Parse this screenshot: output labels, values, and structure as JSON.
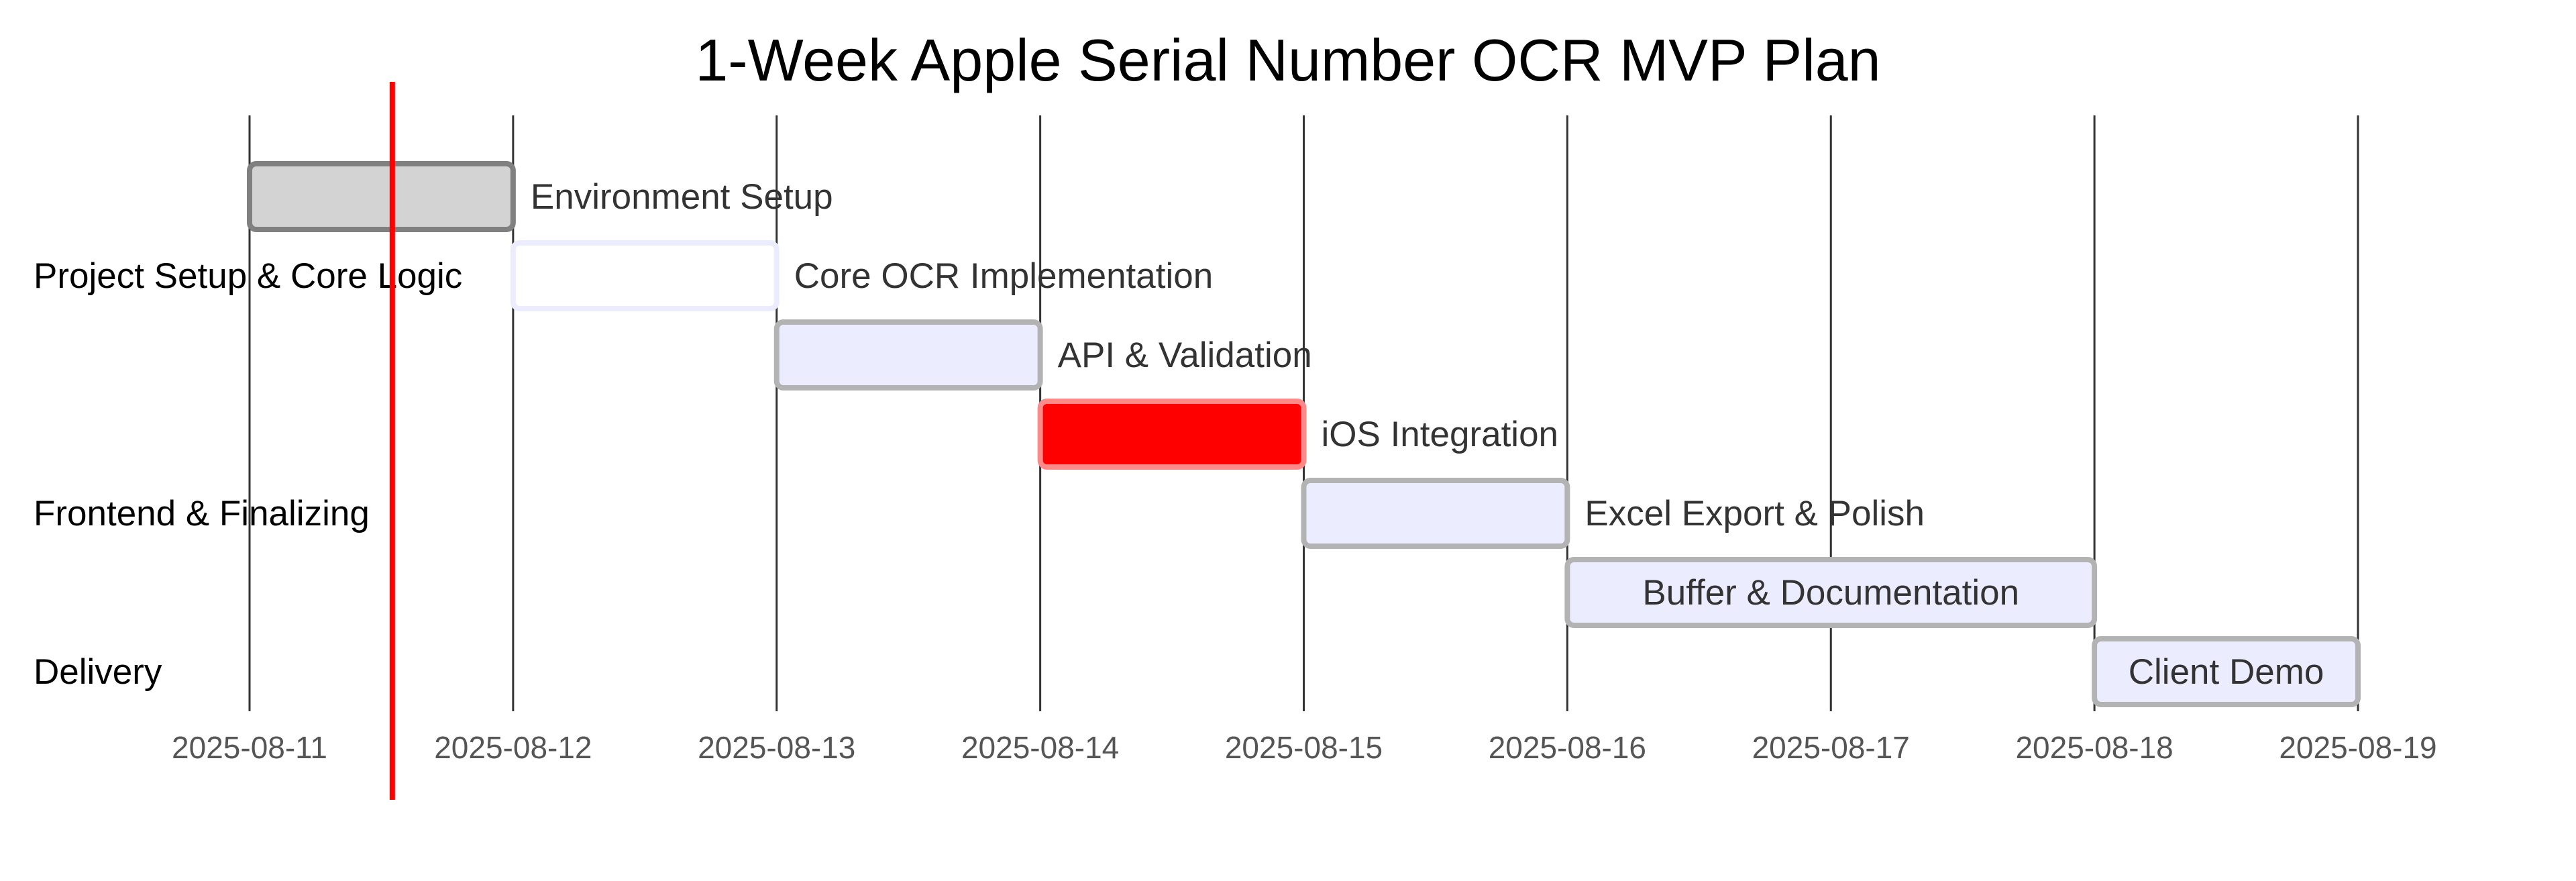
{
  "chart_data": {
    "type": "gantt",
    "title": "1-Week Apple Serial Number OCR MVP Plan",
    "date_format": "YYYY-MM-DD",
    "x_range": [
      "2025-08-11",
      "2025-08-19"
    ],
    "ticks": [
      "2025-08-11",
      "2025-08-12",
      "2025-08-13",
      "2025-08-14",
      "2025-08-15",
      "2025-08-16",
      "2025-08-17",
      "2025-08-18",
      "2025-08-19"
    ],
    "today_marker": "2025-08-11T13:00",
    "grid": true,
    "sections": [
      {
        "name": "Project Setup & Core Logic",
        "tasks": [
          0,
          1,
          2
        ]
      },
      {
        "name": "Frontend & Finalizing",
        "tasks": [
          3,
          4,
          5
        ]
      },
      {
        "name": "Delivery",
        "tasks": [
          6
        ]
      }
    ],
    "tasks": [
      {
        "name": "Environment Setup",
        "start": "2025-08-11",
        "end": "2025-08-12",
        "status": "done"
      },
      {
        "name": "Core OCR Implementation",
        "start": "2025-08-12",
        "end": "2025-08-13",
        "status": "active"
      },
      {
        "name": "API & Validation",
        "start": "2025-08-13",
        "end": "2025-08-14",
        "status": "planned"
      },
      {
        "name": "iOS Integration",
        "start": "2025-08-14",
        "end": "2025-08-15",
        "status": "critical"
      },
      {
        "name": "Excel Export & Polish",
        "start": "2025-08-15",
        "end": "2025-08-16",
        "status": "planned"
      },
      {
        "name": "Buffer & Documentation",
        "start": "2025-08-16",
        "end": "2025-08-18",
        "status": "planned"
      },
      {
        "name": "Client Demo",
        "start": "2025-08-18",
        "end": "2025-08-19",
        "status": "planned"
      }
    ],
    "colors": {
      "done_fill": "#d3d3d3",
      "done_stroke": "#808080",
      "active_fill": "#ffffff",
      "active_stroke": "#ececff",
      "planned_fill": "#ececff",
      "planned_stroke": "#b3b3b3",
      "critical_fill": "#ff0000",
      "critical_stroke": "#ff8888",
      "today_line": "#ff0000",
      "grid_line": "#333333",
      "alt_section_band": "#f8f8ff"
    }
  }
}
